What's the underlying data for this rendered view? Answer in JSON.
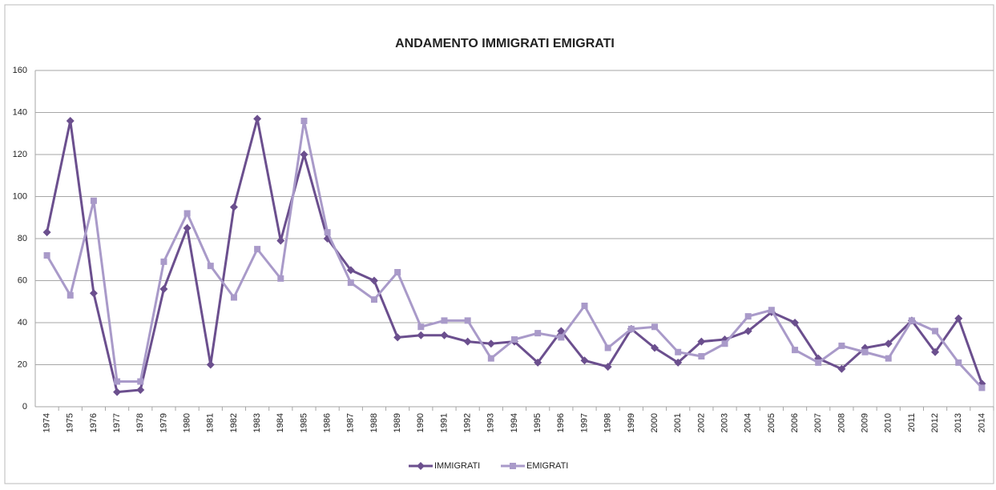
{
  "chart_data": {
    "type": "line",
    "title": "ANDAMENTO IMMIGRATI EMIGRATI",
    "categories": [
      "1974",
      "1975",
      "1976",
      "1977",
      "1978",
      "1979",
      "1980",
      "1981",
      "1982",
      "1983",
      "1984",
      "1985",
      "1986",
      "1987",
      "1988",
      "1989",
      "1990",
      "1991",
      "1992",
      "1993",
      "1994",
      "1995",
      "1996",
      "1997",
      "1998",
      "1999",
      "2000",
      "2001",
      "2002",
      "2003",
      "2004",
      "2005",
      "2006",
      "2007",
      "2008",
      "2009",
      "2010",
      "2011",
      "2012",
      "2013",
      "2014"
    ],
    "series": [
      {
        "name": "IMMIGRATI",
        "color": "#6b4f8e",
        "marker": "diamond",
        "values": [
          83,
          136,
          54,
          7,
          8,
          56,
          85,
          20,
          95,
          137,
          79,
          120,
          80,
          65,
          60,
          33,
          34,
          34,
          31,
          30,
          31,
          21,
          36,
          22,
          19,
          37,
          28,
          21,
          31,
          32,
          36,
          45,
          40,
          23,
          18,
          28,
          30,
          41,
          26,
          42,
          11
        ]
      },
      {
        "name": "EMIGRATI",
        "color": "#a99ac9",
        "marker": "square",
        "values": [
          72,
          53,
          98,
          12,
          12,
          69,
          92,
          67,
          52,
          75,
          61,
          136,
          83,
          59,
          51,
          64,
          38,
          41,
          41,
          23,
          32,
          35,
          33,
          48,
          28,
          37,
          38,
          26,
          24,
          30,
          43,
          46,
          27,
          21,
          29,
          26,
          23,
          41,
          36,
          21,
          9
        ]
      }
    ],
    "ylim": [
      0,
      160
    ],
    "yticks": [
      0,
      20,
      40,
      60,
      80,
      100,
      120,
      140,
      160
    ],
    "grid": true,
    "legend": "bottom"
  }
}
